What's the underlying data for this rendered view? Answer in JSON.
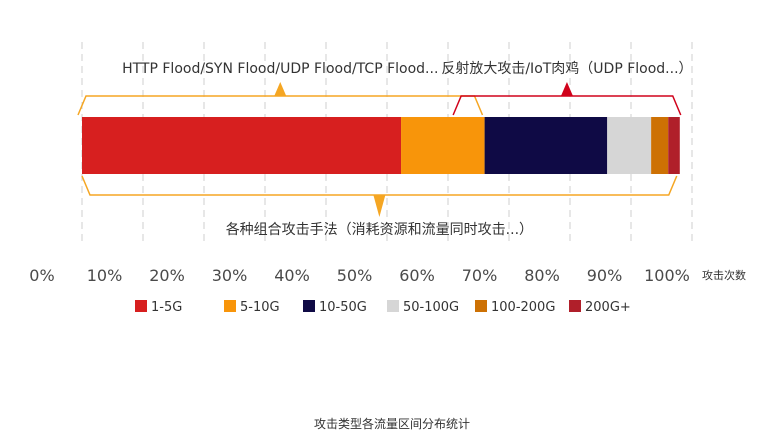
{
  "chart_data": {
    "type": "bar",
    "orientation": "horizontal-stacked",
    "caption": "攻击类型各流量区间分布统计",
    "xlabel": "攻击次数",
    "xlim": [
      0,
      100
    ],
    "ticks": [
      "0%",
      "10%",
      "20%",
      "30%",
      "40%",
      "50%",
      "60%",
      "70%",
      "80%",
      "90%",
      "100%"
    ],
    "grid": true,
    "legend_position": "bottom",
    "series": [
      {
        "name": "1-5G",
        "value": 52.3,
        "color": "#d71f1f"
      },
      {
        "name": "5-10G",
        "value": 13.7,
        "color": "#f8950a"
      },
      {
        "name": "10-50G",
        "value": 20.1,
        "color": "#0f0a45"
      },
      {
        "name": "50-100G",
        "value": 7.2,
        "color": "#d6d6d6"
      },
      {
        "name": "100-200G",
        "value": 2.8,
        "color": "#cd7104"
      },
      {
        "name": "200G+",
        "value": 1.9,
        "color": "#b01f2a"
      }
    ],
    "annotations": [
      {
        "text": "HTTP Flood/SYN Flood/UDP Flood/TCP Flood...",
        "start": 0,
        "end": 65,
        "side": "top",
        "color": "#f5a623"
      },
      {
        "text": "反射放大攻击/IoT肉鸡（UDP Flood...）",
        "start": 61.5,
        "end": 97.5,
        "side": "top",
        "color": "#d0021b"
      },
      {
        "text": "各种组合攻击手法（消耗资源和流量同时攻击...）",
        "start": 0,
        "end": 97.5,
        "side": "bottom",
        "color": "#f5a623"
      }
    ]
  }
}
